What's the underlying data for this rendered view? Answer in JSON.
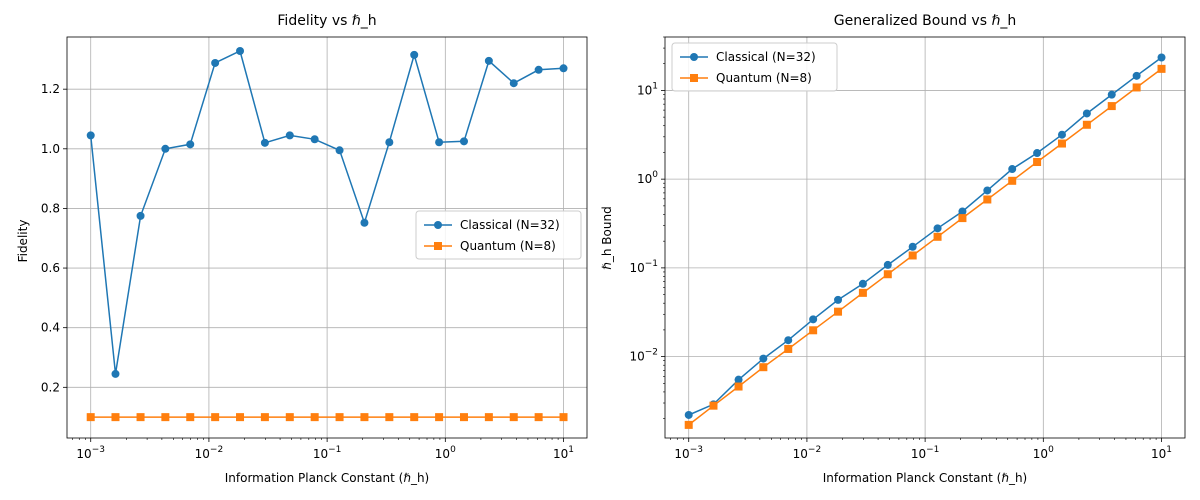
{
  "colors": {
    "classical": "#1f77b4",
    "quantum": "#ff7f0e",
    "grid": "#b0b0b0"
  },
  "chart_data": [
    {
      "type": "line",
      "title": "Fidelity vs ℏ_h",
      "xlabel": "Information Planck Constant (ℏ_h)",
      "ylabel": "Fidelity",
      "xscale": "log",
      "yscale": "linear",
      "xlim": [
        0.00063,
        15.8
      ],
      "ylim": [
        0.03,
        1.375
      ],
      "grid": true,
      "legend_position": "center-right",
      "x_ticks": [
        {
          "value": 0.001,
          "base": "10",
          "exp": "−3"
        },
        {
          "value": 0.01,
          "base": "10",
          "exp": "−2"
        },
        {
          "value": 0.1,
          "base": "10",
          "exp": "−1"
        },
        {
          "value": 1,
          "base": "10",
          "exp": "0"
        },
        {
          "value": 10,
          "base": "10",
          "exp": "1"
        }
      ],
      "y_ticks": [
        {
          "value": 0.2,
          "label": "0.2"
        },
        {
          "value": 0.4,
          "label": "0.4"
        },
        {
          "value": 0.6,
          "label": "0.6"
        },
        {
          "value": 0.8,
          "label": "0.8"
        },
        {
          "value": 1.0,
          "label": "1.0"
        },
        {
          "value": 1.2,
          "label": "1.2"
        }
      ],
      "x": [
        0.001,
        0.00162,
        0.00264,
        0.00428,
        0.00695,
        0.01129,
        0.01833,
        0.02976,
        0.04833,
        0.07848,
        0.12743,
        0.20691,
        0.33598,
        0.54556,
        0.88587,
        1.43845,
        2.33572,
        3.79269,
        6.15848,
        10.0
      ],
      "series": [
        {
          "name": "Classical (N=32)",
          "marker": "circle",
          "color": "#1f77b4",
          "values": [
            1.045,
            0.245,
            0.775,
            1.0,
            1.015,
            1.288,
            1.328,
            1.02,
            1.045,
            1.032,
            0.995,
            0.752,
            1.022,
            1.315,
            1.022,
            1.025,
            1.295,
            1.22,
            1.265,
            1.27
          ]
        },
        {
          "name": "Quantum (N=8)",
          "marker": "square",
          "color": "#ff7f0e",
          "values": [
            0.1,
            0.1,
            0.1,
            0.1,
            0.1,
            0.1,
            0.1,
            0.1,
            0.1,
            0.1,
            0.1,
            0.1,
            0.1,
            0.1,
            0.1,
            0.1,
            0.1,
            0.1,
            0.1,
            0.1
          ]
        }
      ]
    },
    {
      "type": "line",
      "title": "Generalized Bound vs ℏ_h",
      "xlabel": "Information Planck Constant (ℏ_h)",
      "ylabel": "ℏ_h Bound",
      "xscale": "log",
      "yscale": "log",
      "xlim": [
        0.00063,
        15.8
      ],
      "ylim": [
        0.00121,
        40.0
      ],
      "grid": true,
      "legend_position": "top-left",
      "x_ticks": [
        {
          "value": 0.001,
          "base": "10",
          "exp": "−3"
        },
        {
          "value": 0.01,
          "base": "10",
          "exp": "−2"
        },
        {
          "value": 0.1,
          "base": "10",
          "exp": "−1"
        },
        {
          "value": 1,
          "base": "10",
          "exp": "0"
        },
        {
          "value": 10,
          "base": "10",
          "exp": "1"
        }
      ],
      "y_ticks": [
        {
          "value": 0.01,
          "base": "10",
          "exp": "−2"
        },
        {
          "value": 0.1,
          "base": "10",
          "exp": "−1"
        },
        {
          "value": 1,
          "base": "10",
          "exp": "0"
        },
        {
          "value": 10,
          "base": "10",
          "exp": "1"
        }
      ],
      "x": [
        0.001,
        0.00162,
        0.00264,
        0.00428,
        0.00695,
        0.01129,
        0.01833,
        0.02976,
        0.04833,
        0.07848,
        0.12743,
        0.20691,
        0.33598,
        0.54556,
        0.88587,
        1.43845,
        2.33572,
        3.79269,
        6.15848,
        10.0
      ],
      "series": [
        {
          "name": "Classical (N=32)",
          "marker": "circle",
          "color": "#1f77b4",
          "values": [
            0.0022,
            0.0029,
            0.0055,
            0.0095,
            0.0153,
            0.0263,
            0.0436,
            0.0662,
            0.108,
            0.173,
            0.279,
            0.432,
            0.746,
            1.3,
            1.97,
            3.17,
            5.5,
            8.97,
            14.6,
            23.5
          ]
        },
        {
          "name": "Quantum (N=8)",
          "marker": "square",
          "color": "#ff7f0e",
          "values": [
            0.0017,
            0.0028,
            0.0046,
            0.0076,
            0.0122,
            0.0198,
            0.0321,
            0.0523,
            0.0848,
            0.138,
            0.224,
            0.364,
            0.59,
            0.958,
            1.56,
            2.52,
            4.1,
            6.66,
            10.8,
            17.5
          ]
        }
      ]
    }
  ]
}
